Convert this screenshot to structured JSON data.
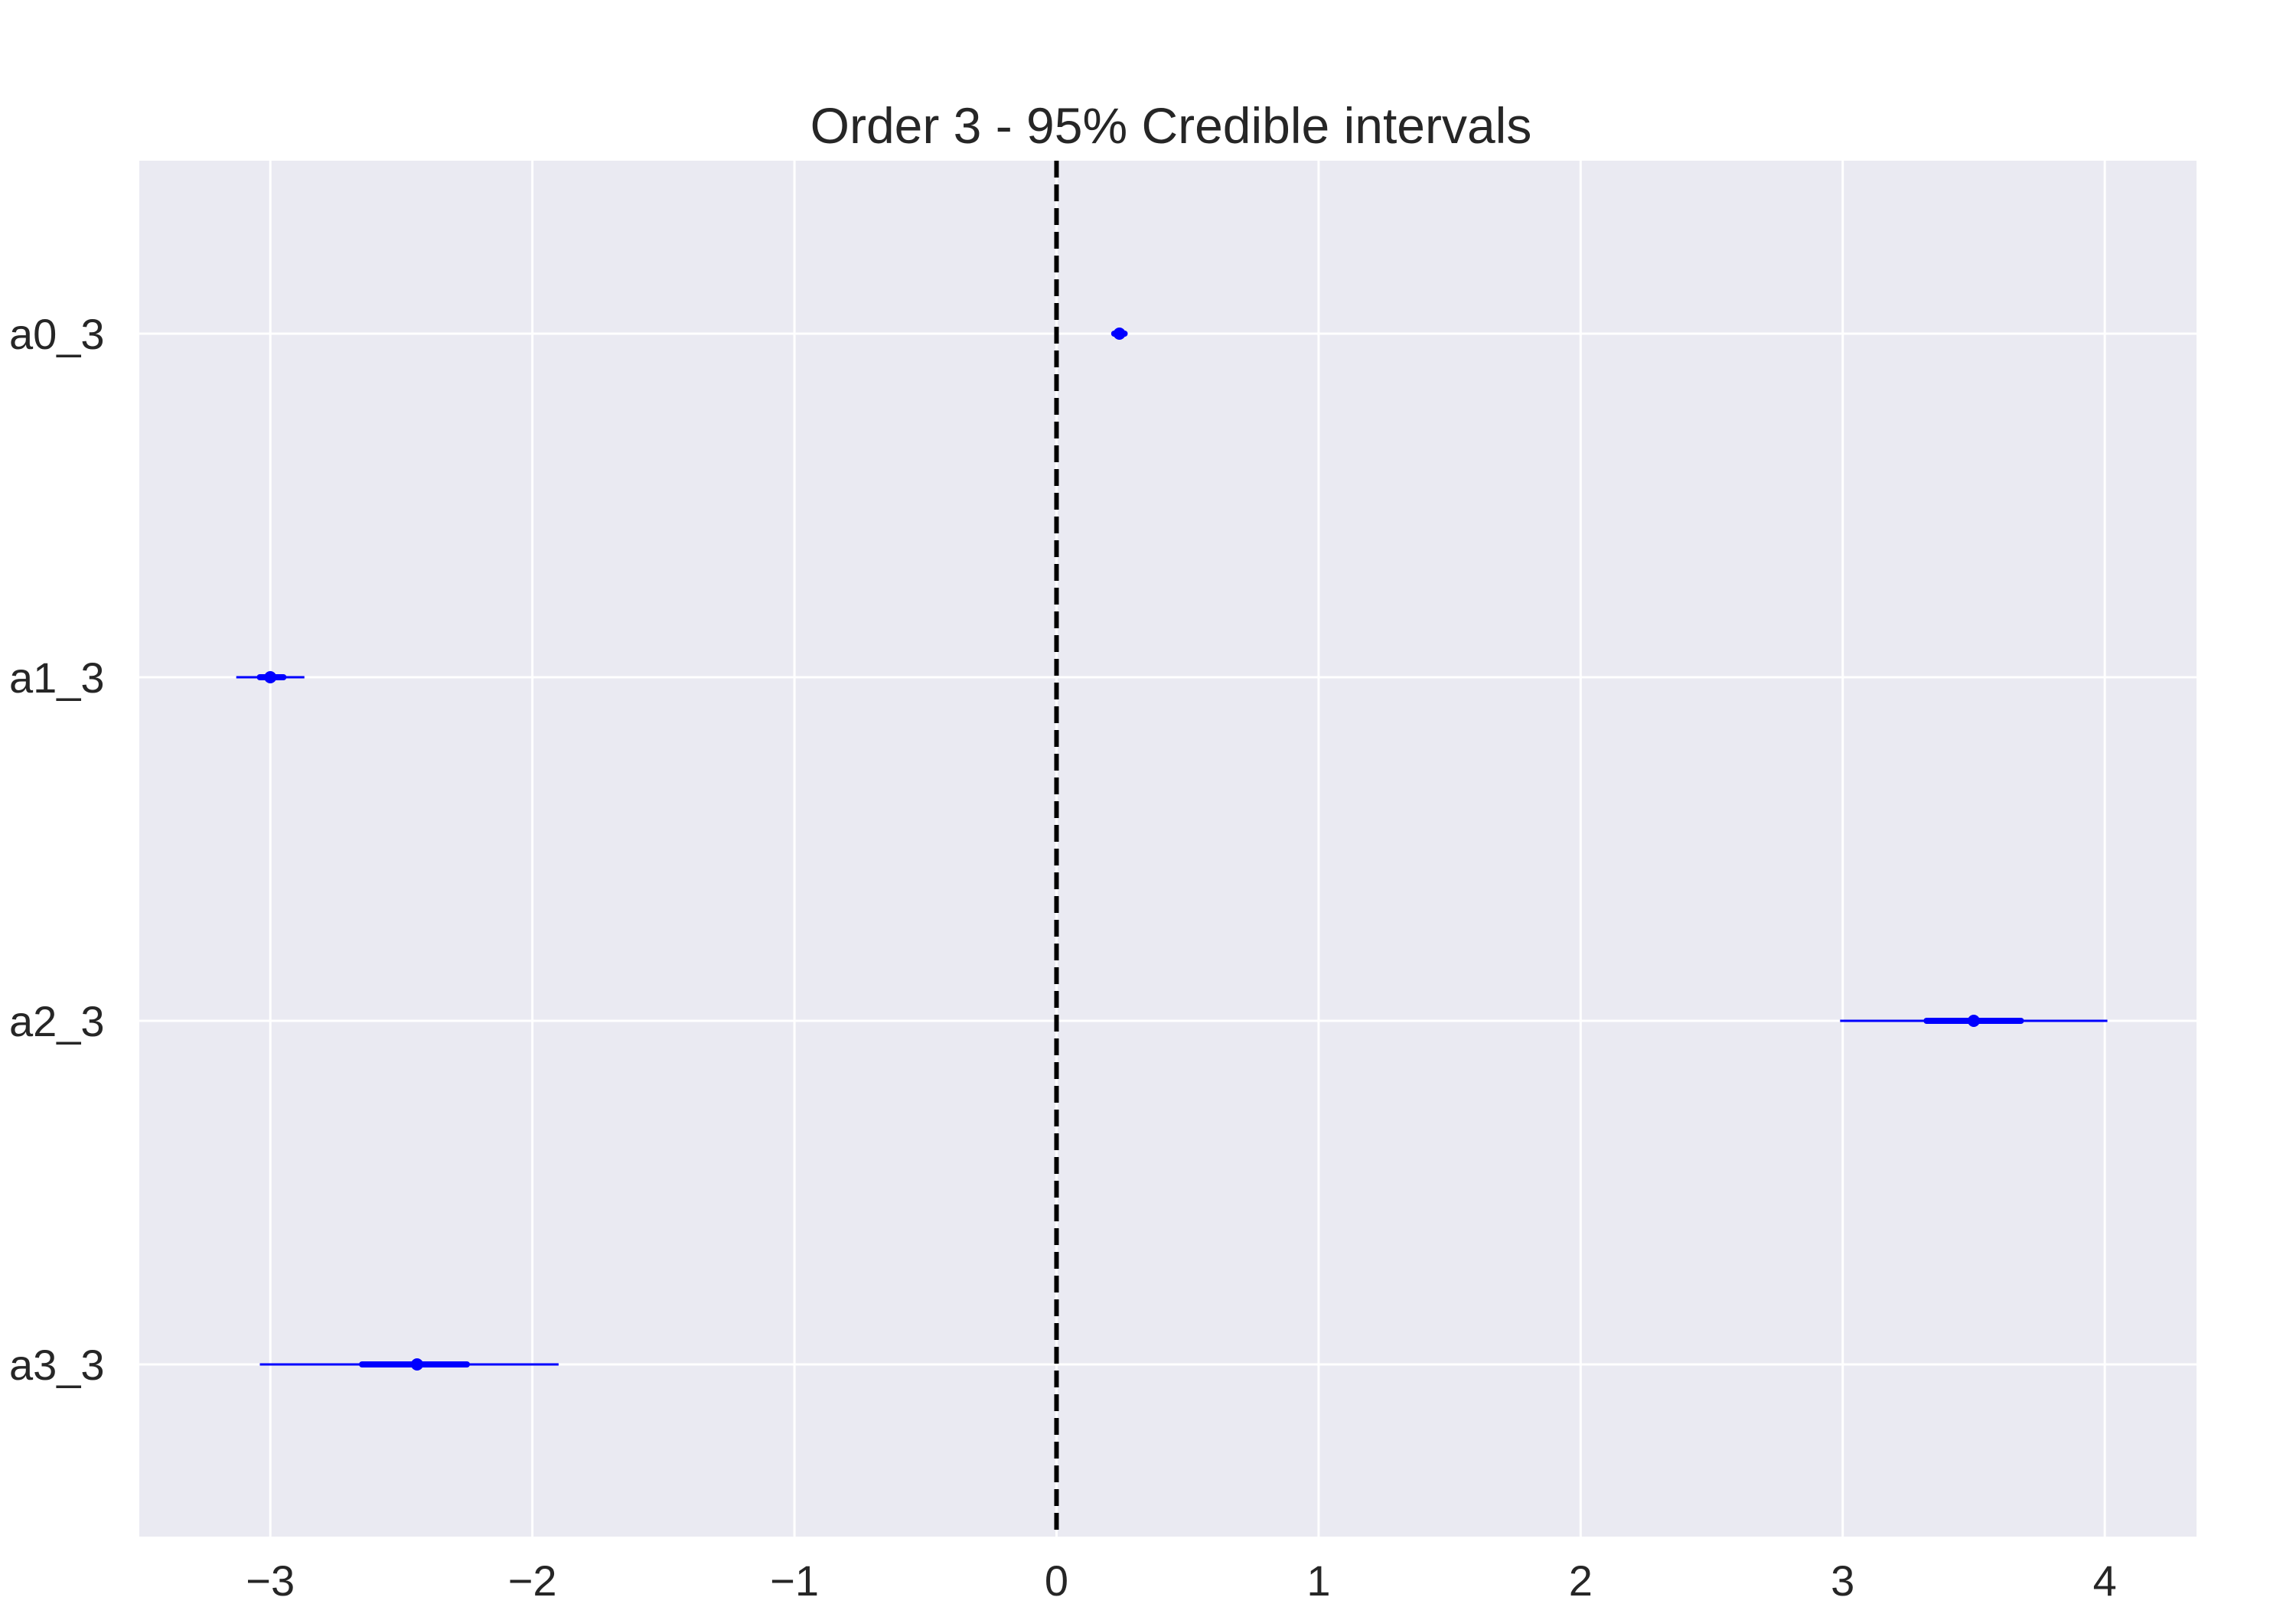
{
  "colors": {
    "plot_background": "#EAEAF2",
    "grid": "#FFFFFF",
    "interval": "#0000FF",
    "reference_line": "#000000",
    "text": "#262626"
  },
  "chart_data": {
    "type": "forest",
    "title": "Order 3 - 95% Credible intervals",
    "xlabel": "",
    "ylabel": "",
    "xlim": [
      -3.5,
      4.35
    ],
    "x_ticks": [
      -3,
      -2,
      -1,
      0,
      1,
      2,
      3,
      4
    ],
    "x_tick_labels": [
      "−3",
      "−2",
      "−1",
      "0",
      "1",
      "2",
      "3",
      "4"
    ],
    "grid": true,
    "reference_line": {
      "x": 0,
      "style": "dashed"
    },
    "parameters": [
      {
        "name": "a0_3",
        "mean": 0.24,
        "hdi_95": [
          0.21,
          0.27
        ],
        "iqr": [
          0.22,
          0.26
        ]
      },
      {
        "name": "a1_3",
        "mean": -3.0,
        "hdi_95": [
          -3.13,
          -2.87
        ],
        "iqr": [
          -3.04,
          -2.95
        ]
      },
      {
        "name": "a2_3",
        "mean": 3.5,
        "hdi_95": [
          2.99,
          4.01
        ],
        "iqr": [
          3.32,
          3.68
        ]
      },
      {
        "name": "a3_3",
        "mean": -2.44,
        "hdi_95": [
          -3.04,
          -1.9
        ],
        "iqr": [
          -2.65,
          -2.25
        ]
      }
    ]
  }
}
